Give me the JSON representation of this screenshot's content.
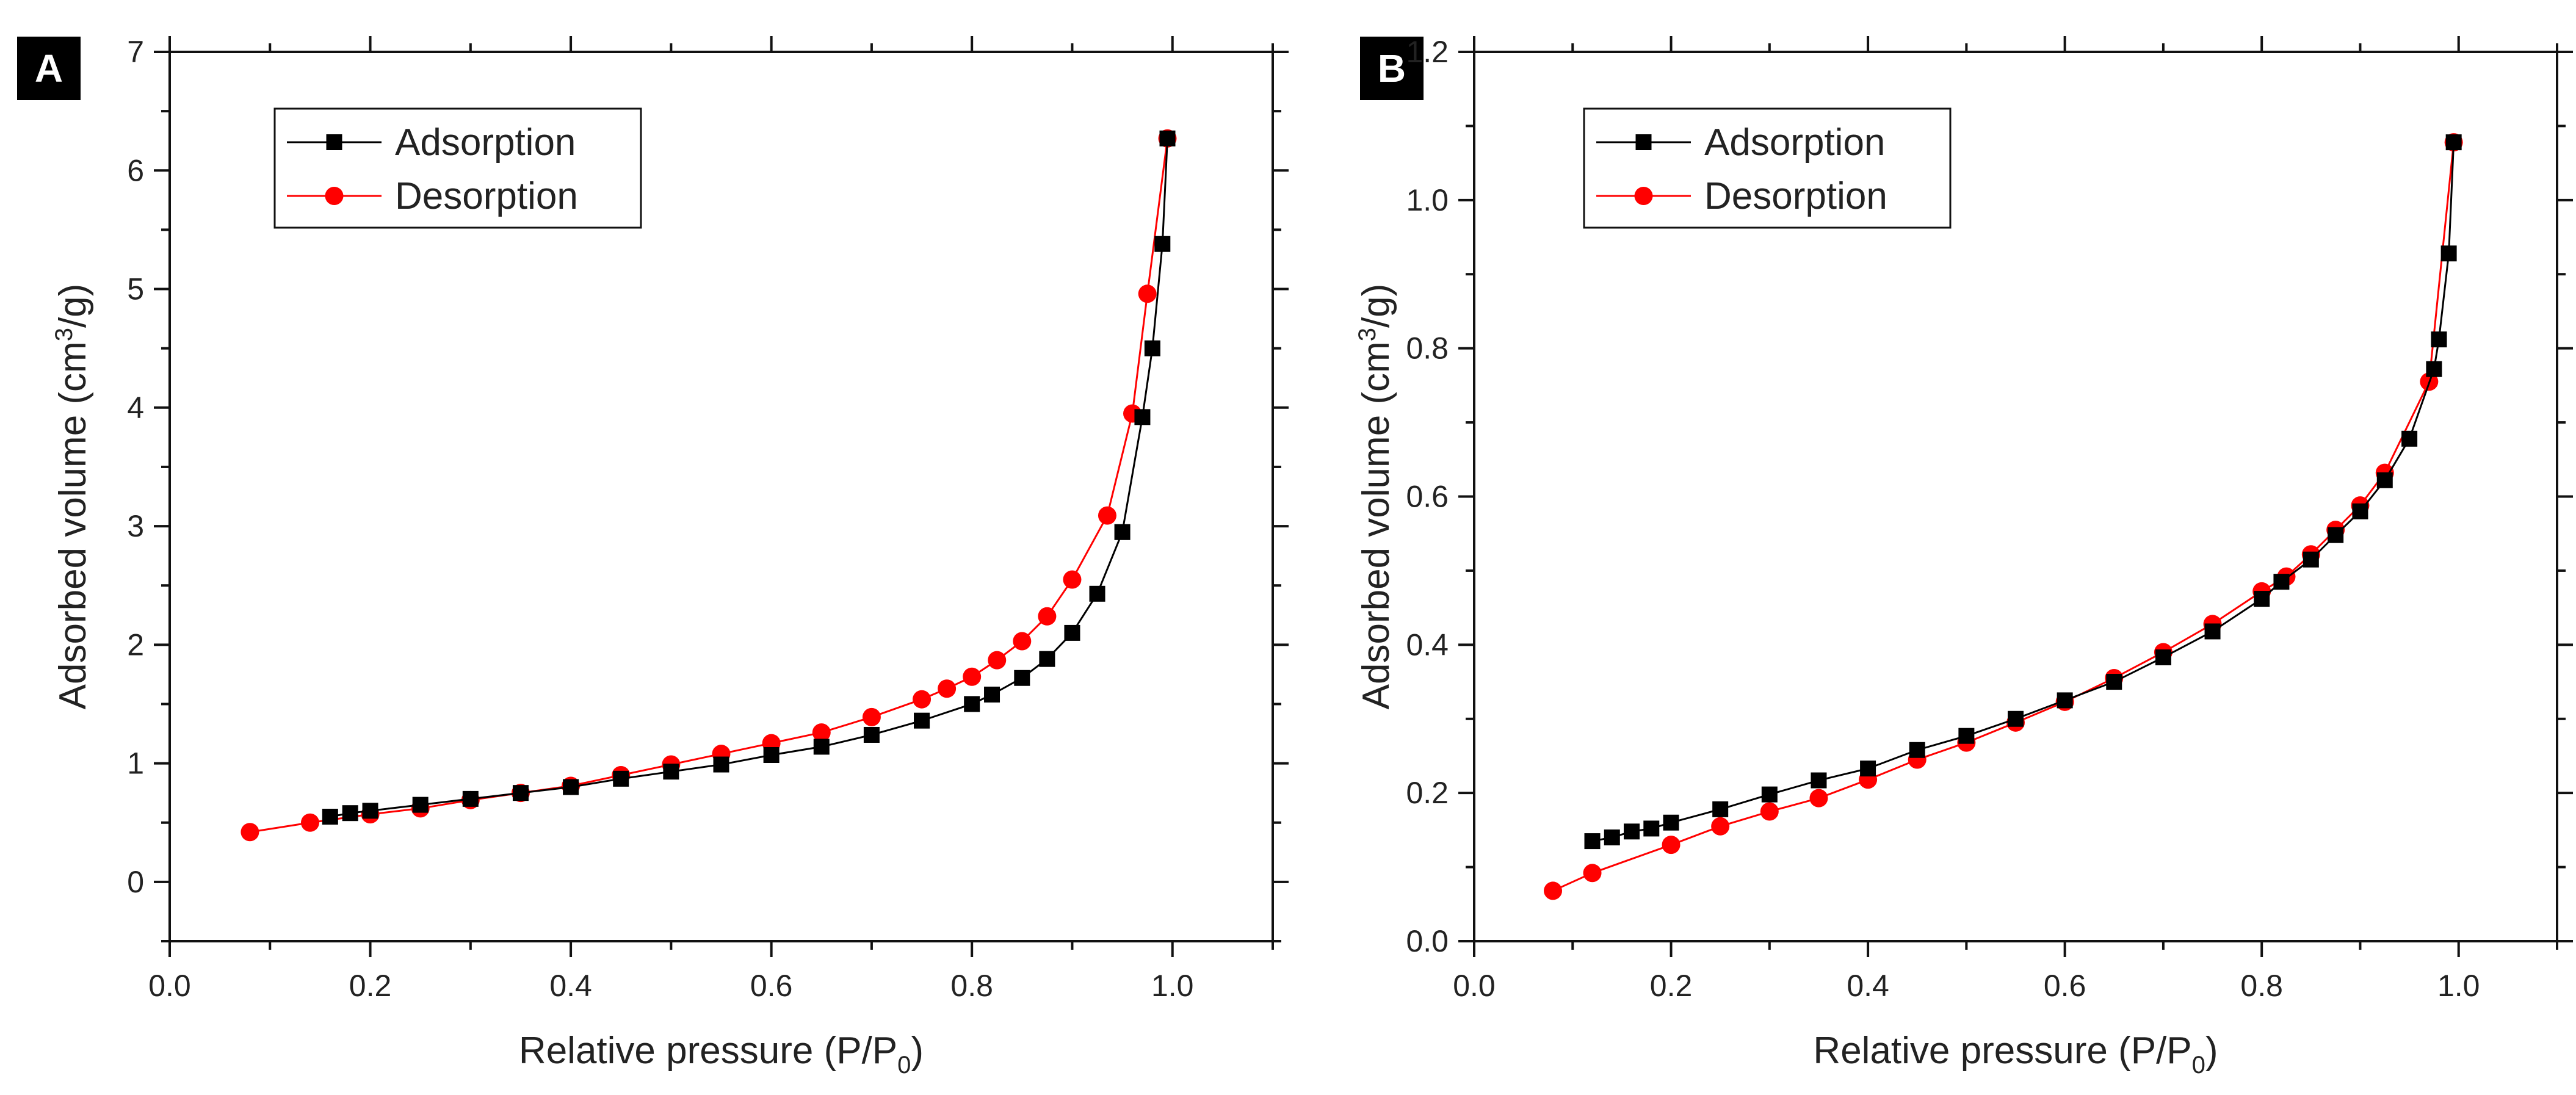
{
  "figure": {
    "panels": [
      {
        "letter": "A"
      },
      {
        "letter": "B"
      }
    ]
  },
  "colors": {
    "adsorption": "#000000",
    "desorption": "#ff0000",
    "panel_label_bg": "#000000"
  },
  "chart_data": [
    {
      "type": "line",
      "panel": "A",
      "xlabel": "Relative pressure (P/P0)",
      "ylabel": "Adsorbed volume (cm3/g)",
      "xlim": [
        0.0,
        1.1
      ],
      "ylim": [
        -0.5,
        7.0
      ],
      "xticks": [
        "0.0",
        "0.2",
        "0.4",
        "0.6",
        "0.8",
        "1.0"
      ],
      "yticks": [
        "0",
        "1",
        "2",
        "3",
        "4",
        "5",
        "6",
        "7"
      ],
      "xtick_values": [
        0.0,
        0.2,
        0.4,
        0.6,
        0.8,
        1.0
      ],
      "ytick_values": [
        0,
        1,
        2,
        3,
        4,
        5,
        6,
        7
      ],
      "legend_position": "top-left",
      "series": [
        {
          "name": "Adsorption",
          "marker": "square",
          "x": [
            0.16,
            0.18,
            0.2,
            0.25,
            0.3,
            0.35,
            0.4,
            0.45,
            0.5,
            0.55,
            0.6,
            0.65,
            0.7,
            0.75,
            0.8,
            0.82,
            0.85,
            0.875,
            0.9,
            0.925,
            0.95,
            0.97,
            0.98,
            0.99,
            0.995
          ],
          "y": [
            0.55,
            0.58,
            0.6,
            0.65,
            0.7,
            0.75,
            0.8,
            0.87,
            0.93,
            0.99,
            1.07,
            1.14,
            1.24,
            1.36,
            1.5,
            1.58,
            1.72,
            1.88,
            2.1,
            2.43,
            2.95,
            3.92,
            4.5,
            5.38,
            6.27
          ]
        },
        {
          "name": "Desorption",
          "marker": "circle",
          "x": [
            0.08,
            0.14,
            0.2,
            0.25,
            0.3,
            0.35,
            0.4,
            0.45,
            0.5,
            0.55,
            0.6,
            0.65,
            0.7,
            0.75,
            0.775,
            0.8,
            0.825,
            0.85,
            0.875,
            0.9,
            0.935,
            0.96,
            0.975,
            0.995
          ],
          "y": [
            0.42,
            0.5,
            0.57,
            0.62,
            0.69,
            0.75,
            0.81,
            0.9,
            0.99,
            1.08,
            1.17,
            1.26,
            1.39,
            1.54,
            1.63,
            1.73,
            1.87,
            2.03,
            2.24,
            2.55,
            3.09,
            3.95,
            4.96,
            6.27
          ]
        }
      ]
    },
    {
      "type": "line",
      "panel": "B",
      "xlabel": "Relative pressure (P/P0)",
      "ylabel": "Adsorbed volume (cm3/g)",
      "xlim": [
        0.0,
        1.1
      ],
      "ylim": [
        0.0,
        1.2
      ],
      "xticks": [
        "0.0",
        "0.2",
        "0.4",
        "0.6",
        "0.8",
        "1.0"
      ],
      "yticks": [
        "0.0",
        "0.2",
        "0.4",
        "0.6",
        "0.8",
        "1.0",
        "1.2"
      ],
      "xtick_values": [
        0.0,
        0.2,
        0.4,
        0.6,
        0.8,
        1.0
      ],
      "ytick_values": [
        0.0,
        0.2,
        0.4,
        0.6,
        0.8,
        1.0,
        1.2
      ],
      "legend_position": "top-left",
      "series": [
        {
          "name": "Adsorption",
          "marker": "square",
          "x": [
            0.12,
            0.14,
            0.16,
            0.18,
            0.2,
            0.25,
            0.3,
            0.35,
            0.4,
            0.45,
            0.5,
            0.55,
            0.6,
            0.65,
            0.7,
            0.75,
            0.8,
            0.82,
            0.85,
            0.875,
            0.9,
            0.925,
            0.95,
            0.975,
            0.98,
            0.99,
            0.995
          ],
          "y": [
            0.135,
            0.14,
            0.148,
            0.152,
            0.16,
            0.178,
            0.198,
            0.217,
            0.233,
            0.258,
            0.277,
            0.3,
            0.325,
            0.35,
            0.383,
            0.418,
            0.462,
            0.485,
            0.515,
            0.548,
            0.58,
            0.622,
            0.678,
            0.772,
            0.812,
            0.928,
            1.078
          ]
        },
        {
          "name": "Desorption",
          "marker": "circle",
          "x": [
            0.08,
            0.12,
            0.2,
            0.25,
            0.3,
            0.35,
            0.4,
            0.45,
            0.5,
            0.55,
            0.6,
            0.65,
            0.7,
            0.75,
            0.8,
            0.825,
            0.85,
            0.875,
            0.9,
            0.925,
            0.97,
            0.995
          ],
          "y": [
            0.068,
            0.092,
            0.13,
            0.155,
            0.175,
            0.193,
            0.218,
            0.245,
            0.268,
            0.295,
            0.323,
            0.355,
            0.39,
            0.428,
            0.472,
            0.492,
            0.522,
            0.555,
            0.588,
            0.632,
            0.755,
            1.078
          ]
        }
      ]
    }
  ]
}
